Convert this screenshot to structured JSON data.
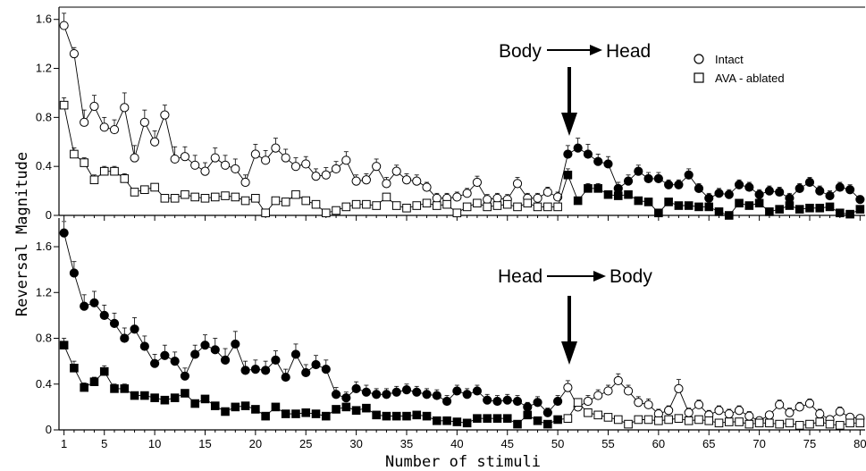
{
  "chart_data": [
    {
      "type": "line",
      "panel": "top",
      "ylabel": "Reversal Magnitude",
      "xlabel": "Number of stimuli",
      "xlim": [
        0.5,
        80.5
      ],
      "ylim": [
        0,
        1.7
      ],
      "y_ticks": [
        "0",
        "0.4",
        "0.8",
        "1.2",
        "1.6"
      ],
      "x_ticks": [
        "1",
        "5",
        "10",
        "15",
        "20",
        "25",
        "30",
        "35",
        "40",
        "45",
        "50",
        "55",
        "60",
        "65",
        "70",
        "75",
        "80"
      ],
      "annotation": {
        "left": "Body",
        "right": "Head",
        "arrow_at_x": 51
      },
      "legend": [
        {
          "label": "Intact",
          "marker": "circle"
        },
        {
          "label": "AVA - ablated",
          "marker": "square"
        }
      ],
      "series": [
        {
          "name": "Intact",
          "marker": "circle",
          "fill_from_x": 51,
          "values": [
            1.55,
            1.32,
            0.76,
            0.89,
            0.72,
            0.7,
            0.88,
            0.47,
            0.76,
            0.6,
            0.82,
            0.46,
            0.48,
            0.41,
            0.36,
            0.47,
            0.41,
            0.38,
            0.27,
            0.5,
            0.45,
            0.55,
            0.47,
            0.4,
            0.42,
            0.32,
            0.33,
            0.38,
            0.45,
            0.28,
            0.29,
            0.4,
            0.26,
            0.36,
            0.29,
            0.28,
            0.23,
            0.14,
            0.14,
            0.15,
            0.18,
            0.27,
            0.13,
            0.14,
            0.13,
            0.26,
            0.14,
            0.14,
            0.19,
            0.15,
            0.5,
            0.55,
            0.5,
            0.44,
            0.42,
            0.22,
            0.28,
            0.36,
            0.3,
            0.3,
            0.25,
            0.25,
            0.33,
            0.22,
            0.14,
            0.18,
            0.17,
            0.25,
            0.23,
            0.17,
            0.2,
            0.19,
            0.14,
            0.22,
            0.27,
            0.2,
            0.16,
            0.23,
            0.21,
            0.13
          ],
          "errors": [
            0.1,
            0.05,
            0.1,
            0.09,
            0.08,
            0.08,
            0.12,
            0.1,
            0.1,
            0.09,
            0.08,
            0.1,
            0.08,
            0.08,
            0.07,
            0.08,
            0.08,
            0.08,
            0.06,
            0.08,
            0.08,
            0.08,
            0.07,
            0.07,
            0.06,
            0.06,
            0.06,
            0.06,
            0.07,
            0.05,
            0.05,
            0.06,
            0.05,
            0.05,
            0.05,
            0.05,
            0.04,
            0.04,
            0.04,
            0.04,
            0.04,
            0.05,
            0.04,
            0.04,
            0.04,
            0.05,
            0.04,
            0.04,
            0.04,
            0.04,
            0.07,
            0.08,
            0.08,
            0.06,
            0.06,
            0.05,
            0.05,
            0.05,
            0.05,
            0.05,
            0.04,
            0.04,
            0.05,
            0.04,
            0.04,
            0.04,
            0.04,
            0.04,
            0.04,
            0.04,
            0.04,
            0.04,
            0.04,
            0.04,
            0.04,
            0.04,
            0.04,
            0.04,
            0.04,
            0.03
          ]
        },
        {
          "name": "AVA - ablated",
          "marker": "square",
          "fill_from_x": 51,
          "values": [
            0.9,
            0.5,
            0.43,
            0.29,
            0.36,
            0.36,
            0.3,
            0.19,
            0.21,
            0.23,
            0.14,
            0.14,
            0.17,
            0.15,
            0.14,
            0.15,
            0.16,
            0.15,
            0.12,
            0.14,
            0.02,
            0.12,
            0.11,
            0.17,
            0.12,
            0.09,
            0.02,
            0.04,
            0.07,
            0.09,
            0.09,
            0.08,
            0.15,
            0.08,
            0.06,
            0.08,
            0.1,
            0.08,
            0.09,
            0.02,
            0.07,
            0.1,
            0.07,
            0.08,
            0.09,
            0.07,
            0.1,
            0.07,
            0.07,
            0.07,
            0.33,
            0.12,
            0.22,
            0.22,
            0.17,
            0.16,
            0.17,
            0.12,
            0.11,
            0.02,
            0.11,
            0.08,
            0.08,
            0.07,
            0.07,
            0.03,
            0.0,
            0.1,
            0.08,
            0.1,
            0.03,
            0.05,
            0.08,
            0.05,
            0.06,
            0.06,
            0.07,
            0.02,
            0.01,
            0.05
          ],
          "errors": [
            0.06,
            0.05,
            0.04,
            0.04,
            0.04,
            0.04,
            0.04,
            0.03,
            0.03,
            0.03,
            0.03,
            0.03,
            0.03,
            0.03,
            0.03,
            0.03,
            0.03,
            0.03,
            0.03,
            0.03,
            0.02,
            0.03,
            0.03,
            0.03,
            0.03,
            0.02,
            0.02,
            0.02,
            0.02,
            0.02,
            0.02,
            0.02,
            0.03,
            0.02,
            0.02,
            0.02,
            0.02,
            0.02,
            0.02,
            0.02,
            0.02,
            0.02,
            0.02,
            0.02,
            0.02,
            0.02,
            0.02,
            0.02,
            0.02,
            0.02,
            0.05,
            0.03,
            0.04,
            0.04,
            0.03,
            0.03,
            0.03,
            0.03,
            0.03,
            0.02,
            0.03,
            0.02,
            0.02,
            0.02,
            0.02,
            0.02,
            0.02,
            0.02,
            0.02,
            0.02,
            0.02,
            0.02,
            0.02,
            0.02,
            0.02,
            0.02,
            0.02,
            0.02,
            0.02,
            0.02
          ]
        }
      ]
    },
    {
      "type": "line",
      "panel": "bottom",
      "ylabel": "Reversal Magnitude",
      "xlabel": "Number of stimuli",
      "xlim": [
        0.5,
        80.5
      ],
      "ylim": [
        0,
        1.85
      ],
      "y_ticks": [
        "0",
        "0.4",
        "0.8",
        "1.2",
        "1.6"
      ],
      "x_ticks": [
        "1",
        "5",
        "10",
        "15",
        "20",
        "25",
        "30",
        "35",
        "40",
        "45",
        "50",
        "55",
        "60",
        "65",
        "70",
        "75",
        "80"
      ],
      "annotation": {
        "left": "Head",
        "right": "Body",
        "arrow_at_x": 51
      },
      "series": [
        {
          "name": "Intact",
          "marker": "circle",
          "fill_until_x": 50,
          "values": [
            1.72,
            1.37,
            1.08,
            1.11,
            1.0,
            0.93,
            0.8,
            0.88,
            0.73,
            0.58,
            0.65,
            0.6,
            0.47,
            0.66,
            0.74,
            0.7,
            0.61,
            0.75,
            0.52,
            0.53,
            0.52,
            0.61,
            0.46,
            0.66,
            0.5,
            0.57,
            0.53,
            0.31,
            0.28,
            0.36,
            0.33,
            0.31,
            0.31,
            0.33,
            0.35,
            0.33,
            0.31,
            0.3,
            0.25,
            0.34,
            0.31,
            0.34,
            0.26,
            0.25,
            0.26,
            0.25,
            0.2,
            0.24,
            0.15,
            0.25,
            0.37,
            0.2,
            0.25,
            0.3,
            0.34,
            0.43,
            0.34,
            0.24,
            0.22,
            0.14,
            0.17,
            0.36,
            0.15,
            0.22,
            0.13,
            0.17,
            0.14,
            0.17,
            0.12,
            0.08,
            0.13,
            0.22,
            0.15,
            0.2,
            0.23,
            0.14,
            0.09,
            0.16,
            0.11,
            0.1
          ],
          "errors": [
            0.1,
            0.1,
            0.1,
            0.1,
            0.09,
            0.09,
            0.09,
            0.1,
            0.09,
            0.08,
            0.09,
            0.08,
            0.07,
            0.08,
            0.09,
            0.1,
            0.1,
            0.11,
            0.08,
            0.08,
            0.08,
            0.08,
            0.07,
            0.09,
            0.07,
            0.08,
            0.08,
            0.06,
            0.05,
            0.06,
            0.06,
            0.05,
            0.05,
            0.05,
            0.05,
            0.05,
            0.05,
            0.05,
            0.05,
            0.05,
            0.05,
            0.05,
            0.05,
            0.05,
            0.05,
            0.05,
            0.04,
            0.05,
            0.04,
            0.05,
            0.06,
            0.05,
            0.05,
            0.05,
            0.05,
            0.06,
            0.05,
            0.05,
            0.05,
            0.04,
            0.04,
            0.08,
            0.04,
            0.04,
            0.04,
            0.04,
            0.04,
            0.04,
            0.04,
            0.03,
            0.03,
            0.04,
            0.04,
            0.04,
            0.04,
            0.04,
            0.03,
            0.04,
            0.03,
            0.03
          ]
        },
        {
          "name": "AVA - ablated",
          "marker": "square",
          "fill_until_x": 50,
          "values": [
            0.74,
            0.54,
            0.37,
            0.42,
            0.51,
            0.36,
            0.36,
            0.3,
            0.3,
            0.28,
            0.26,
            0.28,
            0.32,
            0.23,
            0.27,
            0.21,
            0.16,
            0.2,
            0.21,
            0.18,
            0.12,
            0.2,
            0.14,
            0.14,
            0.15,
            0.14,
            0.12,
            0.18,
            0.2,
            0.17,
            0.19,
            0.13,
            0.12,
            0.12,
            0.12,
            0.13,
            0.12,
            0.08,
            0.08,
            0.07,
            0.06,
            0.1,
            0.1,
            0.1,
            0.1,
            0.05,
            0.13,
            0.08,
            0.05,
            0.09,
            0.1,
            0.24,
            0.15,
            0.13,
            0.11,
            0.09,
            0.05,
            0.09,
            0.09,
            0.08,
            0.09,
            0.1,
            0.08,
            0.09,
            0.08,
            0.06,
            0.07,
            0.07,
            0.05,
            0.06,
            0.06,
            0.05,
            0.06,
            0.04,
            0.05,
            0.07,
            0.05,
            0.04,
            0.06,
            0.06
          ],
          "errors": [
            0.06,
            0.06,
            0.04,
            0.04,
            0.05,
            0.04,
            0.04,
            0.03,
            0.03,
            0.03,
            0.03,
            0.03,
            0.03,
            0.03,
            0.03,
            0.03,
            0.03,
            0.03,
            0.03,
            0.03,
            0.02,
            0.03,
            0.02,
            0.02,
            0.02,
            0.02,
            0.02,
            0.02,
            0.02,
            0.02,
            0.02,
            0.02,
            0.02,
            0.02,
            0.02,
            0.02,
            0.02,
            0.02,
            0.02,
            0.02,
            0.02,
            0.02,
            0.02,
            0.02,
            0.02,
            0.02,
            0.02,
            0.02,
            0.02,
            0.02,
            0.02,
            0.03,
            0.02,
            0.02,
            0.02,
            0.02,
            0.02,
            0.02,
            0.02,
            0.02,
            0.02,
            0.02,
            0.02,
            0.02,
            0.02,
            0.02,
            0.02,
            0.02,
            0.02,
            0.02,
            0.02,
            0.02,
            0.02,
            0.02,
            0.02,
            0.02,
            0.02,
            0.02,
            0.02,
            0.02
          ]
        }
      ]
    }
  ]
}
